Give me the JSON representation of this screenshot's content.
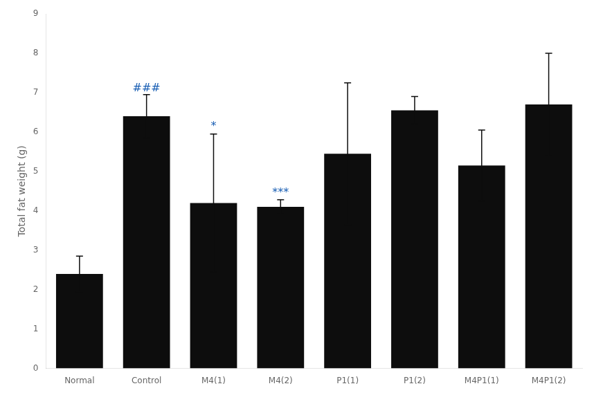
{
  "chart_data": {
    "type": "bar",
    "categories": [
      "Normal",
      "Control",
      "M4(1)",
      "M4(2)",
      "P1(1)",
      "P1(2)",
      "M4P1(1)",
      "M4P1(2)"
    ],
    "values": [
      2.4,
      6.4,
      4.2,
      4.1,
      5.45,
      6.55,
      5.15,
      6.7
    ],
    "errors": [
      0.45,
      0.55,
      1.75,
      0.18,
      1.8,
      0.35,
      0.9,
      1.3
    ],
    "color": "#0d0d0d",
    "ylabel": "Total fat weight (g)",
    "ylim": [
      0,
      9
    ],
    "yticks": [
      0,
      1,
      2,
      3,
      4,
      5,
      6,
      7,
      8,
      9
    ],
    "annotations": [
      {
        "text": "###",
        "x": "Control",
        "y": 6.97,
        "color": "#1a5fb4"
      },
      {
        "text": "*",
        "x": "M4(1)",
        "y": 6.0,
        "color": "#1a5fb4"
      },
      {
        "text": "***",
        "x": "M4(2)",
        "y": 4.32,
        "color": "#1a5fb4"
      }
    ],
    "grid": false
  }
}
